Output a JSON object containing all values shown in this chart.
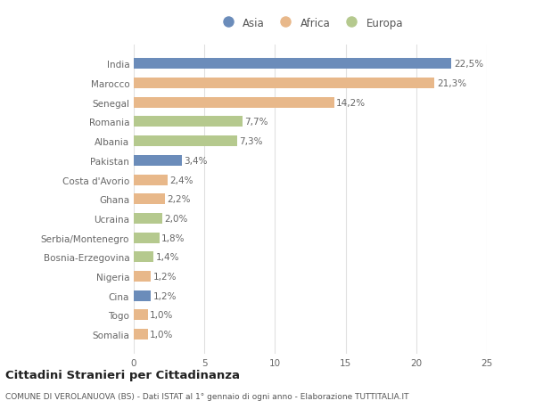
{
  "categories": [
    "India",
    "Marocco",
    "Senegal",
    "Romania",
    "Albania",
    "Pakistan",
    "Costa d'Avorio",
    "Ghana",
    "Ucraina",
    "Serbia/Montenegro",
    "Bosnia-Erzegovina",
    "Nigeria",
    "Cina",
    "Togo",
    "Somalia"
  ],
  "values": [
    22.5,
    21.3,
    14.2,
    7.7,
    7.3,
    3.4,
    2.4,
    2.2,
    2.0,
    1.8,
    1.4,
    1.2,
    1.2,
    1.0,
    1.0
  ],
  "labels": [
    "22,5%",
    "21,3%",
    "14,2%",
    "7,7%",
    "7,3%",
    "3,4%",
    "2,4%",
    "2,2%",
    "2,0%",
    "1,8%",
    "1,4%",
    "1,2%",
    "1,2%",
    "1,0%",
    "1,0%"
  ],
  "colors": [
    "#6b8cba",
    "#e8b88a",
    "#e8b88a",
    "#b5c98e",
    "#b5c98e",
    "#6b8cba",
    "#e8b88a",
    "#e8b88a",
    "#b5c98e",
    "#b5c98e",
    "#b5c98e",
    "#e8b88a",
    "#6b8cba",
    "#e8b88a",
    "#e8b88a"
  ],
  "legend_labels": [
    "Asia",
    "Africa",
    "Europa"
  ],
  "legend_colors": [
    "#6b8cba",
    "#e8b88a",
    "#b5c98e"
  ],
  "title": "Cittadini Stranieri per Cittadinanza",
  "subtitle": "COMUNE DI VEROLANUOVA (BS) - Dati ISTAT al 1° gennaio di ogni anno - Elaborazione TUTTITALIA.IT",
  "xlim": [
    0,
    25
  ],
  "xticks": [
    0,
    5,
    10,
    15,
    20,
    25
  ],
  "bg_color": "#ffffff",
  "grid_color": "#e0e0e0",
  "bar_height": 0.55,
  "label_fontsize": 7.5,
  "tick_fontsize": 7.5,
  "title_fontsize": 9.5,
  "subtitle_fontsize": 6.5
}
